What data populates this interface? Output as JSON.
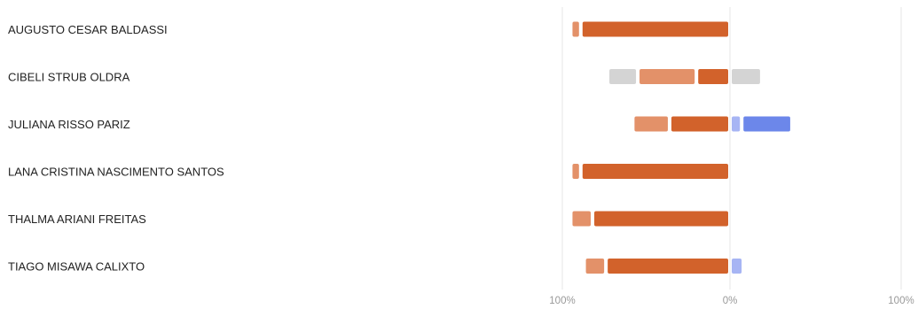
{
  "chart_data": {
    "type": "bar",
    "stacked": true,
    "diverging": true,
    "orientation": "horizontal",
    "title": "",
    "xlabel": "",
    "ylabel": "",
    "categories": [
      "AUGUSTO CESAR BALDASSI",
      "CIBELI STRUB OLDRA",
      "JULIANA RISSO PARIZ",
      "LANA CRISTINA NASCIMENTO SANTOS",
      "THALMA ARIANI FREITAS",
      "TIAGO MISAWA CALIXTO"
    ],
    "series": [
      {
        "color": "#d2622b",
        "side": "negative",
        "values": [
          89,
          20,
          36,
          89,
          82,
          74
        ]
      },
      {
        "color": "#e39169",
        "side": "negative",
        "values": [
          6,
          35,
          22,
          6,
          13,
          13
        ]
      },
      {
        "color": "#d4d4d4",
        "side": "negative",
        "values": [
          0,
          18,
          0,
          0,
          0,
          0
        ]
      },
      {
        "color": "#d4d4d4",
        "side": "positive",
        "values": [
          0,
          19,
          0,
          0,
          0,
          0
        ]
      },
      {
        "color": "#a7b5f4",
        "side": "positive",
        "values": [
          0,
          0,
          7,
          0,
          0,
          8
        ]
      },
      {
        "color": "#6c87ea",
        "side": "positive",
        "values": [
          0,
          0,
          30,
          0,
          0,
          0
        ]
      }
    ],
    "xlim": [
      -100,
      100
    ],
    "x_tick_labels": [
      "100%",
      "0%",
      "100%"
    ],
    "grid": true,
    "legend": "none"
  }
}
